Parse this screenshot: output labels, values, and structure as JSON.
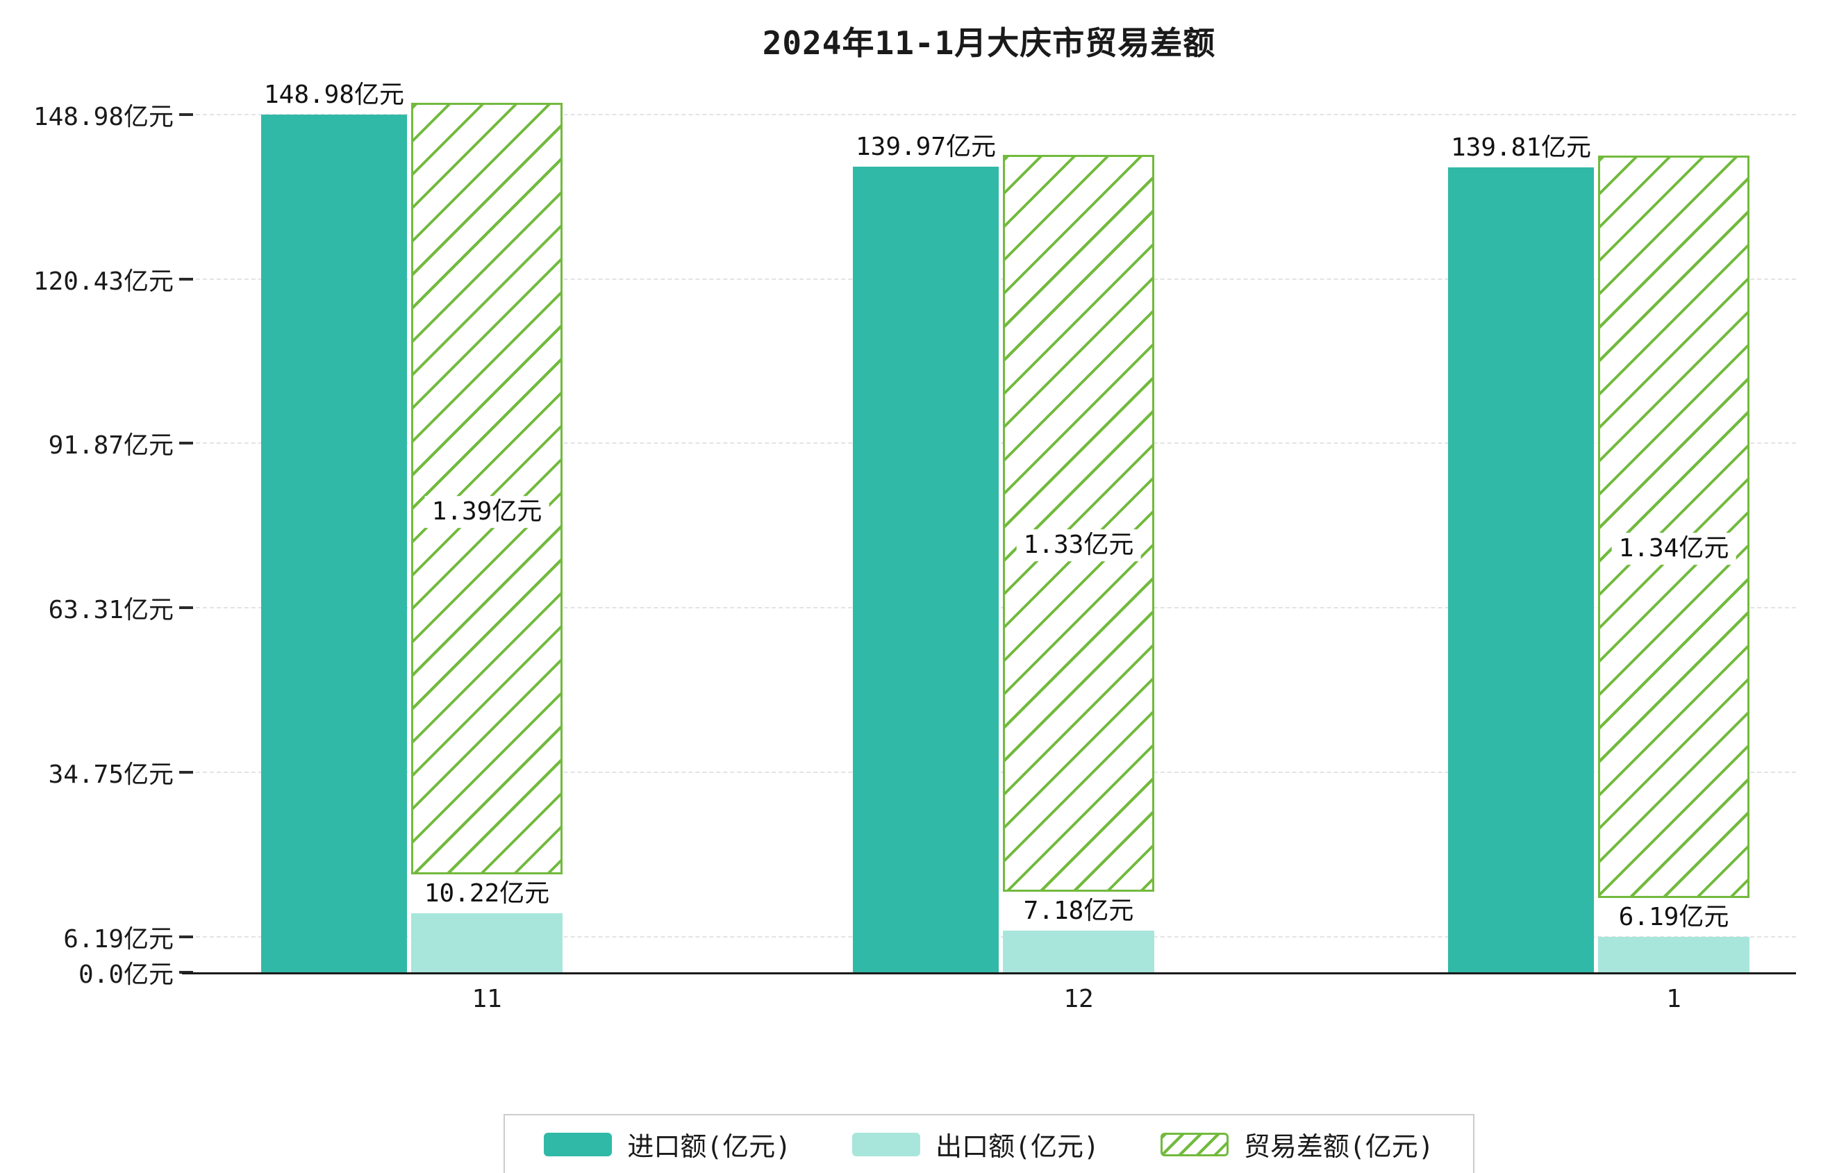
{
  "chart_data": {
    "type": "bar",
    "title": "2024年11-1月大庆市贸易差额",
    "categories": [
      "11",
      "12",
      "1"
    ],
    "series": [
      {
        "name": "进口额(亿元)",
        "values": [
          148.98,
          139.97,
          139.81
        ],
        "value_labels": [
          "148.98亿元",
          "139.97亿元",
          "139.81亿元"
        ],
        "color": "#31b9a7",
        "style": "solid"
      },
      {
        "name": "出口额(亿元)",
        "values": [
          10.22,
          7.18,
          6.19
        ],
        "value_labels": [
          "10.22亿元",
          "7.18亿元",
          "6.19亿元"
        ],
        "color": "#a8e6db",
        "style": "solid"
      },
      {
        "name": "贸易差额(亿元)",
        "values": [
          1.39,
          1.33,
          1.34
        ],
        "value_labels": [
          "1.39亿元",
          "1.33亿元",
          "1.34亿元"
        ],
        "color": "#72ba3d",
        "style": "hatched"
      }
    ],
    "y_ticks": [
      {
        "value": 0.0,
        "label": "0.0亿元"
      },
      {
        "value": 6.19,
        "label": "6.19亿元"
      },
      {
        "value": 34.75,
        "label": "34.75亿元"
      },
      {
        "value": 63.31,
        "label": "63.31亿元"
      },
      {
        "value": 91.87,
        "label": "91.87亿元"
      },
      {
        "value": 120.43,
        "label": "120.43亿元"
      },
      {
        "value": 148.98,
        "label": "148.98亿元"
      }
    ],
    "ylim": [
      0,
      155
    ],
    "grid": "dashed-horizontal",
    "legend_position": "bottom",
    "axis_color": "#1a1a1a",
    "background_color": "#ffffff"
  }
}
